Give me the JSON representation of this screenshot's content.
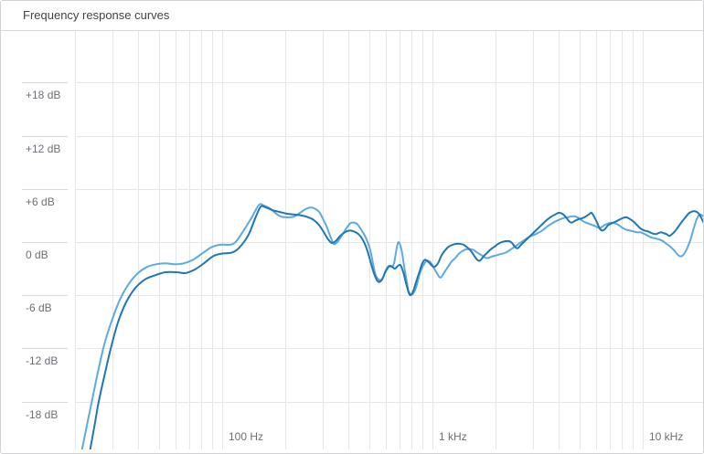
{
  "header": {
    "title": "Frequency response curves"
  },
  "colors": {
    "panel_border": "#d2d2d5",
    "header_divider": "#d7d7da",
    "grid": "#e7e7ea",
    "axis_tick": "#d9d9dc",
    "label_text": "#6c7076",
    "title_text": "#404449",
    "series_dark_blue": "#1f77b4",
    "series_light_blue": "#5ea9e0"
  },
  "chart_data": {
    "type": "line",
    "title": "Frequency response curves",
    "grid": true,
    "legend": "none",
    "x_axis": {
      "scale": "log",
      "unit": "Hz",
      "min": 20,
      "max": 20000,
      "gridline_frequencies": [
        20,
        30,
        40,
        50,
        60,
        70,
        80,
        90,
        100,
        200,
        300,
        400,
        500,
        600,
        700,
        800,
        900,
        1000,
        2000,
        3000,
        4000,
        5000,
        6000,
        7000,
        8000,
        9000,
        10000
      ],
      "labels": [
        {
          "value": 100,
          "text": "100 Hz"
        },
        {
          "value": 1000,
          "text": "1 kHz"
        },
        {
          "value": 10000,
          "text": "10 kHz"
        }
      ]
    },
    "y_axis": {
      "unit": "dB",
      "min": -24,
      "max": 24,
      "step": 6,
      "gridlines": [
        18,
        12,
        6,
        0,
        -6,
        -12,
        -18
      ],
      "labels": [
        {
          "value": 18,
          "text": "+18 dB"
        },
        {
          "value": 12,
          "text": "+12 dB"
        },
        {
          "value": 6,
          "text": "+6 dB"
        },
        {
          "value": 0,
          "text": "0 dB"
        },
        {
          "value": -6,
          "text": "-6 dB"
        },
        {
          "value": -12,
          "text": "-12 dB"
        },
        {
          "value": -18,
          "text": "-18 dB"
        }
      ]
    },
    "series": [
      {
        "name": "light-blue-curve",
        "color_key": "series_light_blue",
        "points": [
          [
            21.5,
            -23.7
          ],
          [
            23,
            -20.2
          ],
          [
            24,
            -18.1
          ],
          [
            25.7,
            -14.7
          ],
          [
            27.6,
            -11.5
          ],
          [
            29.9,
            -8.9
          ],
          [
            32.7,
            -6.5
          ],
          [
            36.1,
            -4.7
          ],
          [
            39.9,
            -3.5
          ],
          [
            44.1,
            -2.8
          ],
          [
            48.7,
            -2.5
          ],
          [
            53.9,
            -2.4
          ],
          [
            59.6,
            -2.5
          ],
          [
            65.8,
            -2.4
          ],
          [
            72.8,
            -2
          ],
          [
            80.4,
            -1.3
          ],
          [
            88.9,
            -0.6
          ],
          [
            98.2,
            -0.3
          ],
          [
            109,
            -0.3
          ],
          [
            116,
            0
          ],
          [
            126,
            1.2
          ],
          [
            138,
            2.7
          ],
          [
            150,
            4.2
          ],
          [
            159,
            4.1
          ],
          [
            169,
            3.8
          ],
          [
            179,
            3.3
          ],
          [
            190,
            2.9
          ],
          [
            200,
            2.8
          ],
          [
            210,
            2.8
          ],
          [
            221,
            2.9
          ],
          [
            235,
            3.3
          ],
          [
            249,
            3.7
          ],
          [
            262,
            3.9
          ],
          [
            275,
            3.8
          ],
          [
            290,
            3.4
          ],
          [
            301,
            2.7
          ],
          [
            314,
            1.8
          ],
          [
            327,
            0.7
          ],
          [
            340,
            -0.2
          ],
          [
            354,
            0
          ],
          [
            368,
            0.6
          ],
          [
            387,
            1.4
          ],
          [
            407,
            2.1
          ],
          [
            424,
            2.2
          ],
          [
            441,
            2
          ],
          [
            459,
            1.4
          ],
          [
            483,
            0.5
          ],
          [
            507,
            -0.9
          ],
          [
            533,
            -3.4
          ],
          [
            550,
            -4.1
          ],
          [
            566,
            -4.3
          ],
          [
            583,
            -4
          ],
          [
            601,
            -3.2
          ],
          [
            619,
            -2.7
          ],
          [
            638,
            -2.8
          ],
          [
            658,
            -2.4
          ],
          [
            676,
            -0.8
          ],
          [
            692,
            0
          ],
          [
            713,
            -0.8
          ],
          [
            735,
            -2.7
          ],
          [
            757,
            -4.5
          ],
          [
            773,
            -5.6
          ],
          [
            804,
            -5.9
          ],
          [
            838,
            -5.1
          ],
          [
            871,
            -3.6
          ],
          [
            908,
            -2.6
          ],
          [
            944,
            -2.1
          ],
          [
            982,
            -2.3
          ],
          [
            1023,
            -3
          ],
          [
            1064,
            -3.7
          ],
          [
            1097,
            -4
          ],
          [
            1142,
            -3.4
          ],
          [
            1188,
            -2.8
          ],
          [
            1236,
            -2.2
          ],
          [
            1288,
            -1.8
          ],
          [
            1340,
            -1.3
          ],
          [
            1394,
            -1
          ],
          [
            1452,
            -0.8
          ],
          [
            1510,
            -0.8
          ],
          [
            1574,
            -0.9
          ],
          [
            1637,
            -1.2
          ],
          [
            1722,
            -1.5
          ],
          [
            1812,
            -1.8
          ],
          [
            1942,
            -1.6
          ],
          [
            2080,
            -1.4
          ],
          [
            2233,
            -1.2
          ],
          [
            2372,
            -0.8
          ],
          [
            2543,
            -0.3
          ],
          [
            2728,
            0.2
          ],
          [
            2898,
            0.6
          ],
          [
            3104,
            0.9
          ],
          [
            3334,
            1.3
          ],
          [
            3540,
            1.8
          ],
          [
            3760,
            2.2
          ],
          [
            3990,
            2.5
          ],
          [
            4198,
            2.7
          ],
          [
            4406,
            2.8
          ],
          [
            4634,
            2.9
          ],
          [
            4778,
            2.9
          ],
          [
            4978,
            2.7
          ],
          [
            5178,
            2.4
          ],
          [
            5384,
            2.2
          ],
          [
            5662,
            2
          ],
          [
            5958,
            1.8
          ],
          [
            6266,
            1.6
          ],
          [
            6576,
            1.9
          ],
          [
            6854,
            2.1
          ],
          [
            7128,
            2.2
          ],
          [
            7430,
            2.1
          ],
          [
            7730,
            1.9
          ],
          [
            8036,
            1.6
          ],
          [
            8376,
            1.4
          ],
          [
            8710,
            1.3
          ],
          [
            9078,
            1.2
          ],
          [
            9440,
            1.1
          ],
          [
            9818,
            1.1
          ],
          [
            10234,
            0.9
          ],
          [
            10642,
            0.7
          ],
          [
            11066,
            0.5
          ],
          [
            11534,
            0.4
          ],
          [
            11996,
            0.3
          ],
          [
            12500,
            0.1
          ],
          [
            13004,
            -0.2
          ],
          [
            13522,
            -0.5
          ],
          [
            14094,
            -0.9
          ],
          [
            14660,
            -1.4
          ],
          [
            15102,
            -1.6
          ],
          [
            15560,
            -1.5
          ],
          [
            16220,
            -0.8
          ],
          [
            16866,
            0.2
          ],
          [
            17540,
            1.6
          ],
          [
            18120,
            2.6
          ],
          [
            18666,
            3.1
          ],
          [
            19232,
            3
          ],
          [
            19816,
            2.7
          ]
        ]
      },
      {
        "name": "dark-blue-curve",
        "color_key": "series_dark_blue",
        "points": [
          [
            23.5,
            -23.7
          ],
          [
            24.9,
            -20.4
          ],
          [
            25.9,
            -18.1
          ],
          [
            27.6,
            -15.1
          ],
          [
            29.6,
            -12
          ],
          [
            32,
            -9.1
          ],
          [
            35,
            -6.8
          ],
          [
            38.7,
            -5.2
          ],
          [
            43.2,
            -4.2
          ],
          [
            48.7,
            -3.7
          ],
          [
            53.9,
            -3.4
          ],
          [
            60.8,
            -3.4
          ],
          [
            67.1,
            -3.5
          ],
          [
            74.2,
            -3.1
          ],
          [
            82,
            -2.4
          ],
          [
            90.7,
            -1.6
          ],
          [
            100,
            -1.3
          ],
          [
            111,
            -1.2
          ],
          [
            120,
            -0.7
          ],
          [
            133,
            0.7
          ],
          [
            144,
            2.7
          ],
          [
            153,
            4
          ],
          [
            162,
            3.9
          ],
          [
            174,
            3.6
          ],
          [
            188,
            3.4
          ],
          [
            204,
            3.2
          ],
          [
            221,
            3.1
          ],
          [
            239,
            3
          ],
          [
            257,
            2.8
          ],
          [
            273,
            2.5
          ],
          [
            290,
            1.9
          ],
          [
            305,
            1.1
          ],
          [
            320,
            0.3
          ],
          [
            333,
            -0.1
          ],
          [
            347,
            0.1
          ],
          [
            365,
            0.7
          ],
          [
            384,
            1.1
          ],
          [
            403,
            1.3
          ],
          [
            424,
            1.2
          ],
          [
            446,
            0.9
          ],
          [
            469,
            0.2
          ],
          [
            492,
            -1
          ],
          [
            518,
            -2.9
          ],
          [
            538,
            -4
          ],
          [
            555,
            -4.5
          ],
          [
            578,
            -4.2
          ],
          [
            601,
            -3.3
          ],
          [
            627,
            -2.7
          ],
          [
            646,
            -2.8
          ],
          [
            665,
            -3
          ],
          [
            686,
            -2.7
          ],
          [
            706,
            -2.6
          ],
          [
            728,
            -3.4
          ],
          [
            750,
            -4.6
          ],
          [
            773,
            -5.7
          ],
          [
            789,
            -6
          ],
          [
            813,
            -5.5
          ],
          [
            838,
            -4.5
          ],
          [
            871,
            -3.3
          ],
          [
            897,
            -2.4
          ],
          [
            925,
            -2
          ],
          [
            964,
            -2.3
          ],
          [
            1000,
            -2.7
          ],
          [
            1023,
            -2.8
          ],
          [
            1064,
            -2.4
          ],
          [
            1107,
            -1.5
          ],
          [
            1154,
            -0.9
          ],
          [
            1200,
            -0.5
          ],
          [
            1250,
            -0.3
          ],
          [
            1300,
            -0.2
          ],
          [
            1352,
            -0.2
          ],
          [
            1409,
            -0.3
          ],
          [
            1466,
            -0.6
          ],
          [
            1527,
            -1
          ],
          [
            1589,
            -1.6
          ],
          [
            1637,
            -2
          ],
          [
            1687,
            -2.1
          ],
          [
            1756,
            -1.6
          ],
          [
            1828,
            -1.2
          ],
          [
            1901,
            -0.8
          ],
          [
            1980,
            -0.5
          ],
          [
            2060,
            -0.2
          ],
          [
            2144,
            0
          ],
          [
            2233,
            0.1
          ],
          [
            2324,
            0.1
          ],
          [
            2395,
            -0.1
          ],
          [
            2468,
            -0.5
          ],
          [
            2543,
            -0.7
          ],
          [
            2648,
            -0.3
          ],
          [
            2754,
            0.1
          ],
          [
            2869,
            0.5
          ],
          [
            2986,
            0.9
          ],
          [
            3140,
            1.4
          ],
          [
            3296,
            1.9
          ],
          [
            3468,
            2.4
          ],
          [
            3648,
            2.8
          ],
          [
            3838,
            3.1
          ],
          [
            3990,
            3.3
          ],
          [
            4150,
            3.2
          ],
          [
            4325,
            2.8
          ],
          [
            4456,
            2.4
          ],
          [
            4592,
            2.2
          ],
          [
            4778,
            2.4
          ],
          [
            4978,
            2.6
          ],
          [
            5178,
            2.7
          ],
          [
            5384,
            2.9
          ],
          [
            5610,
            3.2
          ],
          [
            5728,
            3.3
          ],
          [
            5902,
            2.8
          ],
          [
            6082,
            2.2
          ],
          [
            6266,
            1.5
          ],
          [
            6456,
            1.3
          ],
          [
            6652,
            1.5
          ],
          [
            6854,
            1.9
          ],
          [
            7128,
            2.1
          ],
          [
            7430,
            2.3
          ],
          [
            7730,
            2.5
          ],
          [
            8036,
            2.7
          ],
          [
            8376,
            2.8
          ],
          [
            8710,
            2.6
          ],
          [
            9078,
            2.3
          ],
          [
            9440,
            1.9
          ],
          [
            9818,
            1.5
          ],
          [
            10234,
            1.3
          ],
          [
            10642,
            1.2
          ],
          [
            11066,
            1
          ],
          [
            11534,
            0.9
          ],
          [
            11886,
            1
          ],
          [
            12248,
            1.1
          ],
          [
            12620,
            1
          ],
          [
            13004,
            0.9
          ],
          [
            13400,
            0.7
          ],
          [
            13808,
            0.9
          ],
          [
            14228,
            1.2
          ],
          [
            14660,
            1.6
          ],
          [
            15280,
            2.2
          ],
          [
            15886,
            2.7
          ],
          [
            16520,
            3.2
          ],
          [
            17020,
            3.4
          ],
          [
            17540,
            3.5
          ],
          [
            18120,
            3.4
          ],
          [
            18666,
            3.1
          ],
          [
            19232,
            2.5
          ],
          [
            19816,
            1.9
          ]
        ]
      }
    ]
  }
}
